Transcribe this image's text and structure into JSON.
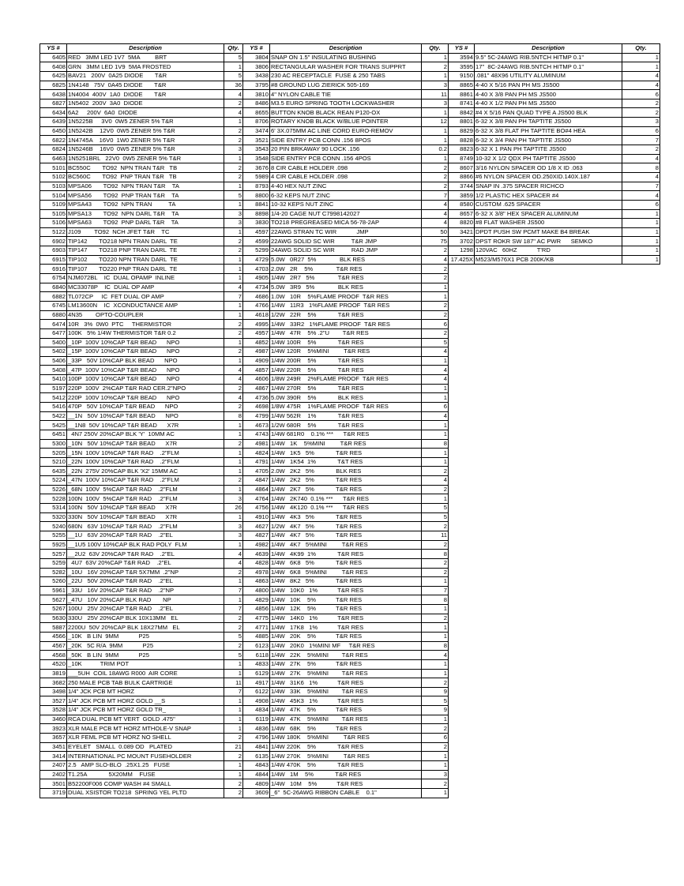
{
  "headers": {
    "ys": "YS #",
    "description": "Description",
    "qty": "Qty."
  },
  "groups": [
    {
      "rows": [
        [
          "6405",
          "RED   3MM LED 1V7  5MA         BRT",
          "5"
        ],
        [
          "6408",
          "GRN   3MM LED 1V9  5MA FROSTED",
          "1"
        ],
        [
          "6425",
          "BAV21   200V  0A25 DIODE       T&R",
          "5"
        ],
        [
          "6825",
          "1N4148   75V  0A45 DIODE       T&R",
          "36"
        ],
        [
          "6438",
          "1N4004  400V  1A0  DIODE       T&R",
          "4"
        ],
        [
          "6827",
          "1N5402  200V  3A0  DIODE",
          "2"
        ],
        [
          "6434",
          "6A2     200V  6A0  DIODE",
          "4"
        ],
        [
          "6439",
          "1N5225B     3V0  0W5 ZENER 5% T&R",
          "1"
        ],
        [
          "6450",
          "1N5242B    12V0  0W5 ZENER 5% T&R",
          "2"
        ],
        [
          "6822",
          "1N4745A    16V0  1W0 ZENER 5% T&R",
          "2"
        ],
        [
          "6824",
          "1N5246B    16V0  0W5 ZENER 5% T&R",
          "3"
        ],
        [
          "6463",
          "1N5251BRL   22V0  0W5 ZENER 5% T&R",
          "1"
        ],
        [
          "5101",
          "BC550C       TO92  NPN TRAN T&R   TB",
          "2"
        ],
        [
          "5102",
          "BC560C       TO92  PNP TRAN T&R   TB",
          "2"
        ],
        [
          "5103",
          "MPSA06       TO92  NPN TRAN T&R    TA",
          "1"
        ],
        [
          "5104",
          "MPSA56       TO92  PNP TRAN T&R    TA",
          "5"
        ],
        [
          "5109",
          "MPSA43       TO92  NPN TRAN          TA",
          "1"
        ],
        [
          "5105",
          "MPSA13       TO92  NPN DARL T&R    TA",
          "3"
        ],
        [
          "5106",
          "MPSA63       TO92  PNP DARL T&R    TA",
          "3"
        ],
        [
          "5122",
          "J109        TO92  NCH JFET T&R    TC",
          "1"
        ],
        [
          "6902",
          "TIP142       TO218 NPN TRAN DARL  TE",
          "2"
        ],
        [
          "6903",
          "TIP147       TO218 PNP TRAN DARL  TE",
          "2"
        ],
        [
          "6915",
          "TIP102       TO220 NPN TRAN DARL  TE",
          "1"
        ],
        [
          "6916",
          "TIP107       TO220 PNP TRAN DARL  TE",
          "1"
        ],
        [
          "6754",
          "NJM072BL    IC  DUAL OPAMP  INLINE",
          "1"
        ],
        [
          "6840",
          "MC33078P    IC  DUAL OP AMP",
          "4"
        ],
        [
          "6882",
          "TL072CP     IC  FET DUAL OP AMP",
          "7"
        ],
        [
          "6745",
          "LM13600N    IC  XCONDUCTANCE AMP",
          "1"
        ],
        [
          "6880",
          "4N35        OPTO-COUPLER",
          "1"
        ],
        [
          "6474",
          "10R   3%  0W0  PTC     THERMISTOR",
          "2"
        ],
        [
          "6477",
          "100K   5% 1/4W THERMISTOR T&R 0.2",
          "2"
        ],
        [
          "5400",
          "_10P  100V 10%CAP T&R BEAD      NPO",
          "1"
        ],
        [
          "5402",
          "_15P  100V 10%CAP T&R BEAD      NPO",
          "2"
        ],
        [
          "5406",
          "_33P   50V 10%CAP BLK BEAD      NPO",
          "1"
        ],
        [
          "5408",
          "_47P  100V 10%CAP T&R BEAD      NPO",
          "4"
        ],
        [
          "5410",
          "100P  100V 10%CAP T&R BEAD      NPO",
          "4"
        ],
        [
          "5197",
          "220P  100V  2%CAP T&R RAD CER.2\"NPO",
          "2"
        ],
        [
          "5412",
          "220P  100V 10%CAP T&R BEAD      NPO",
          "4"
        ],
        [
          "5416",
          "470P   50V 10%CAP T&R BEAD      NPO",
          "2"
        ],
        [
          "5422",
          "__1N   50V 10%CAP T&R BEAD      NPO",
          "8"
        ],
        [
          "5425",
          "__1N8  50V 10%CAP T&R BEAD      X7R",
          "1"
        ],
        [
          "6451",
          "  4N7 250V 20%CAP BLK 'Y'  10MM AC",
          "1"
        ],
        [
          "5300",
          "_10N   50V 10%CAP T&R BEAD      X7R",
          "2"
        ],
        [
          "5205",
          "_15N  100V 10%CAP T&R RAD    .2\"FLM",
          "1"
        ],
        [
          "5210",
          "_22N  100V 10%CAP T&R RAD    .2\"FLM",
          "1"
        ],
        [
          "6435",
          "_22N  275V 20%CAP BLK 'X2' 15MM AC",
          "1"
        ],
        [
          "5224",
          "_47N  100V 10%CAP T&R RAD    .2\"FLM",
          "2"
        ],
        [
          "5226",
          "_68N  100V  5%CAP T&R RAD    .2\"FLM",
          "1"
        ],
        [
          "5228",
          "100N  100V  5%CAP T&R RAD    .2\"FLM",
          "3"
        ],
        [
          "5314",
          "100N   50V 10%CAP T&R BEAD      X7R",
          "26"
        ],
        [
          "5320",
          "330N   50V 10%CAP T&R BEAD      X7R",
          "1"
        ],
        [
          "5240",
          "680N   63V 10%CAP T&R RAD    .2\"FLM",
          "3"
        ],
        [
          "5255",
          "__1U   63V 20%CAP T&R RAD    .2\"EL",
          "3"
        ],
        [
          "5925",
          "__1U5 100V 10%CAP BLK RAD POLY  FLM",
          "1"
        ],
        [
          "5257",
          "__2U2  63V 20%CAP T&R RAD    .2\"EL",
          "4"
        ],
        [
          "5259",
          "  4U7  63V 20%CAP T&R RAD    .2\"EL",
          "4"
        ],
        [
          "5282",
          "_10U   16V 20%CAP T&R 5X7MM  .2\"NP",
          "2"
        ],
        [
          "5260",
          "_22U   50V 20%CAP T&R RAD    .2\"EL",
          "1"
        ],
        [
          "5961",
          "_33U   16V 20%CAP T&R RAD    .2\"NP",
          "7"
        ],
        [
          "5627",
          "_47U   10V 20%CAP BLK RAD       NP",
          "1"
        ],
        [
          "5267",
          "100U   25V 20%CAP T&R RAD    .2\"EL",
          "7"
        ],
        [
          "5630",
          "330U   25V 20%CAP BLK 10X13MM   EL",
          "2"
        ],
        [
          "5887",
          "2200U  50V 20%CAP BLK 18X27MM   EL",
          "2"
        ],
        [
          "4566",
          "_10K   B LIN  9MM            P25",
          "5"
        ],
        [
          "4567",
          "_20K   5C R/A  9MM            P25",
          "2"
        ],
        [
          "4568",
          "_50K   B LIN  9MM            P25",
          "5"
        ],
        [
          "4520",
          "_10K           TRIM POT",
          "1"
        ],
        [
          "3819",
          "___5UH  COIL 18AWG R000  AIR CORE",
          "1"
        ],
        [
          "3682",
          "250 MALE PCB TAB BULK CARTRIGE",
          "11"
        ],
        [
          "3498",
          "1/4\" JCK PCB MT HORZ",
          "7"
        ],
        [
          "3527",
          "1/4\" JCK PCB MT HORZ GOLD __S",
          "1"
        ],
        [
          "3528",
          "1/4\" JCK PCB MT HORZ GOLD TR_",
          "1"
        ],
        [
          "3460",
          "RCA DUAL PCB MT VERT  GOLD .475\"",
          "1"
        ],
        [
          "3923",
          "XLR MALE PCB MT HORZ MTHOLE-V SNAP",
          "1"
        ],
        [
          "3657",
          "XLR FEML PCB MT HORZ NO SHELL",
          "2"
        ],
        [
          "3451",
          "EYELET   SMALL  0.089 OD   PLATED",
          "21"
        ],
        [
          "3414",
          "INTERNATIONAL PC MOUNT FUSEHOLDER",
          "2"
        ],
        [
          "2407",
          "2.5   AMP SLO-BLO  .25X1.25   FUSE",
          "1"
        ],
        [
          "2402",
          "T1.25A             5X20MM    FUSE",
          "1"
        ],
        [
          "3501",
          "B52200F006 COMP WASH #4 SMALL",
          "2"
        ],
        [
          "3719",
          "DUAL XSISTOR TO218  SPRING YEL PLTD",
          "2"
        ]
      ]
    },
    {
      "rows": [
        [
          "3804",
          "SNAP ON 1.5\" INSULATING BUSHING",
          "1"
        ],
        [
          "3806",
          "RECTANGULAR WASHER FOR TRANS SUPPRT",
          "2"
        ],
        [
          "3438",
          "230 AC RECEPTACLE  FUSE & 250 TABS",
          "1"
        ],
        [
          "3795",
          "#8 GROUND LUG ZIERICK 505-169",
          "3"
        ],
        [
          "3810",
          "4\" NYLON CABLE TIE",
          "11"
        ],
        [
          "8486",
          "M3.5 EURO SPRING TOOTH LOCKWASHER",
          "3"
        ],
        [
          "8655",
          "BUTTON KNOB BLACK REAN P120-OX",
          "1"
        ],
        [
          "8706",
          "ROTARY KNOB BLACK W/BLUE POINTER",
          "12"
        ],
        [
          "3474",
          "6' 3X.075MM AC LINE CORD EURO-REMOV",
          "1"
        ],
        [
          "3521",
          "SIDE ENTRY PCB CONN .156 8POS",
          "1"
        ],
        [
          "3543",
          "20 PIN BRKAWAY 90 LOCK .156",
          "0.2"
        ],
        [
          "3548",
          "SIDE ENTRY PCB CONN .156 4POS",
          "1"
        ],
        [
          "3676",
          "8 CIR CABLE HOLDER .098",
          "2"
        ],
        [
          "5989",
          "4 CIR CABLE HOLDER .098",
          "2"
        ],
        [
          "8793",
          "4-40 HEX NUT ZINC",
          "2"
        ],
        [
          "8800",
          "6-32 KEPS NUT ZINC",
          "7"
        ],
        [
          "8841",
          "10-32 KEPS NUT ZINC",
          "4"
        ],
        [
          "8898",
          "1/4-20 CAGE NUT C7998142027",
          "4"
        ],
        [
          "3830",
          "TO218 PREGREASED MICA 56-78-2AP",
          "4"
        ],
        [
          "4597",
          "22AWG STRAN TC WIR            JMP",
          "50"
        ],
        [
          "4599",
          "22AWG SOLID SC WIR          T&R JMP",
          "75"
        ],
        [
          "5299",
          "24AWG SOLID SC WIR          RAD JMP",
          "2"
        ],
        [
          "4729",
          "5.0W   0R27  5%              BLK RES",
          "4"
        ],
        [
          "4703",
          "2.0W   2R    5%              T&R RES",
          "2"
        ],
        [
          "4905",
          "1/4W   2R7   5%              T&R RES",
          "2"
        ],
        [
          "4734",
          "5.0W   3R9   5%              BLK RES",
          "1"
        ],
        [
          "4686",
          "1.0W   10R    5%FLAME PROOF  T&R RES",
          "1"
        ],
        [
          "4766",
          "1/4W   11R3   1%FLAME PROOF  T&R RES",
          "2"
        ],
        [
          "4618",
          "1/2W   22R    5%             T&R RES",
          "2"
        ],
        [
          "4995",
          "1/4W   33R2   1%FLAME PROOF  T&R RES",
          "6"
        ],
        [
          "4957",
          "1/4W   47R    5% .2\"U        T&R RES",
          "2"
        ],
        [
          "4852",
          "1/4W 100R    5%             T&R RES",
          "5"
        ],
        [
          "4987",
          "1/4W 120R    5%MINI         T&R RES",
          "4"
        ],
        [
          "4909",
          "1/4W 200R    5%             T&R RES",
          "1"
        ],
        [
          "4857",
          "1/4W 220R    5%             T&R RES",
          "4"
        ],
        [
          "4606",
          "1/8W 249R    2%FLAME PROOF  T&R RES",
          "4"
        ],
        [
          "4867",
          "1/4W 270R    5%             T&R RES",
          "1"
        ],
        [
          "4736",
          "5.0W 390R    5%             BLK RES",
          "1"
        ],
        [
          "4698",
          "1/8W 475R    1%FLAME PROOF  T&R RES",
          "6"
        ],
        [
          "4799",
          "1/4W 562R    1%             T&R RES",
          "4"
        ],
        [
          "4673",
          "1/2W 680R    5%             T&R RES",
          "1"
        ],
        [
          "4743",
          "1/4W 681R0    0.1% ***      T&R RES",
          "1"
        ],
        [
          "4981",
          "1/4W   1K    5%MINI         T&R RES",
          "8"
        ],
        [
          "4824",
          "1/4W   1K5   5%             T&R RES",
          "1"
        ],
        [
          "4791",
          "1/4W   1K54  1%             T&T RES",
          "1"
        ],
        [
          "4705",
          "2.0W   2K2   5%             BLK RES",
          "2"
        ],
        [
          "4847",
          "1/4W   2K2   5%             T&R RES",
          "4"
        ],
        [
          "4864",
          "1/4W   2K7   5%             T&R RES",
          "2"
        ],
        [
          "4764",
          "1/4W   2K740  0.1% ***      T&R RES",
          "1"
        ],
        [
          "4756",
          "1/4W   4K120  0.1% ***      T&R RES",
          "5"
        ],
        [
          "4910",
          "1/4W   4K3   5%             T&R RES",
          "5"
        ],
        [
          "4627",
          "1/2W   4K7   5%             T&R RES",
          "2"
        ],
        [
          "4827",
          "1/4W   4K7   5%             T&R RES",
          "11"
        ],
        [
          "4982",
          "1/4W   4K7   5%MINI         T&R RES",
          "2"
        ],
        [
          "4639",
          "1/4W   4K99  1%             T&R RES",
          "8"
        ],
        [
          "4828",
          "1/4W   6K8   5%             T&R RES",
          "2"
        ],
        [
          "4978",
          "1/4W   6K8   5%MINI         T&R RES",
          "2"
        ],
        [
          "4863",
          "1/4W   8K2   5%             T&R RES",
          "1"
        ],
        [
          "4800",
          "1/4W   10K0   1%            T&R RES",
          "7"
        ],
        [
          "4829",
          "1/4W   10K    5%            T&R RES",
          "8"
        ],
        [
          "4856",
          "1/4W   12K    5%            T&R RES",
          "1"
        ],
        [
          "4775",
          "1/4W   14K0   1%            T&R RES",
          "2"
        ],
        [
          "4771",
          "1/4W   17K8   1%            T&R RES",
          "1"
        ],
        [
          "4885",
          "1/4W   20K    5%            T&R RES",
          "1"
        ],
        [
          "6123",
          "1/4W   20K0   1%MINI MF     T&R RES",
          "8"
        ],
        [
          "6118",
          "1/4W   22K    5%MINI        T&R RES",
          "4"
        ],
        [
          "4833",
          "1/4W   27K    5%            T&R RES",
          "1"
        ],
        [
          "6129",
          "1/4W   27K    5%MINI        T&R RES",
          "1"
        ],
        [
          "4917",
          "1/4W   31K6   1%            T&R RES",
          "2"
        ],
        [
          "6122",
          "1/4W   33K    5%MINI        T&R RES",
          "9"
        ],
        [
          "4908",
          "1/4W   45K3   1%            T&R RES",
          "5"
        ],
        [
          "4834",
          "1/4W   47K    5%            T&R RES",
          "9"
        ],
        [
          "6119",
          "1/4W   47K    5%MINI        T&R RES",
          "1"
        ],
        [
          "4836",
          "1/4W   68K    5%            T&R RES",
          "2"
        ],
        [
          "4796",
          "1/4W 180K    5%MINI         T&R RES",
          "6"
        ],
        [
          "4841",
          "1/4W 220K    5%             T&R RES",
          "2"
        ],
        [
          "6135",
          "1/4W 270K    5%MINI         T&R RES",
          "1"
        ],
        [
          "4843",
          "1/4W 470K    5%             T&R RES",
          "1"
        ],
        [
          "4844",
          "1/4W   1M    5%             T&R RES",
          "3"
        ],
        [
          "4809",
          "1/4W   10M    5%            T&R RES",
          "2"
        ],
        [
          "3609",
          "_6\"  5C-26AWG RIBBON CABLE    0.1\"",
          "1"
        ]
      ]
    },
    {
      "rows": [
        [
          "3594",
          "9.5\" 5C-24AWG RIB.5NTCH HITMP 0.1\"",
          "1"
        ],
        [
          "3595",
          "17\"  8C-24AWG RIB.5NTCH HITMP 0.1\"",
          "1"
        ],
        [
          "9150",
          ".081\" 48X96 UTILITY ALUMINUM",
          "4"
        ],
        [
          "8865",
          "4-40 X 5/16 PAN PH MS JS500",
          "4"
        ],
        [
          "8861",
          "4-40 X 3/8 PAN PH MS JS500",
          "6"
        ],
        [
          "8741",
          "4-40 X 1/2 PAN PH MS JS500",
          "2"
        ],
        [
          "8842",
          "#4 X 5/16 PAN QUAD TYPE A JS500 BLK",
          "2"
        ],
        [
          "8801",
          "6-32 X 3/8 PAN PH TAPTITE JS500",
          "3"
        ],
        [
          "8829",
          "6-32 X 3/8 FLAT PH TAPTITE BO#4 HEA",
          "6"
        ],
        [
          "8828",
          "6-32 X 3/4 PAN PH TAPTITE JS500",
          "7"
        ],
        [
          "8823",
          "6-32 X 1 PAN PH TAPTITE JS500",
          "2"
        ],
        [
          "8749",
          "10-32 X 1/2 QDX PH TAPTITE JS500",
          "4"
        ],
        [
          "8607",
          "3/16 NYLON SPACER OD 1/8 X ID .063",
          "8"
        ],
        [
          "8866",
          "#6 NYLON SPACER OD.250XID.140X.187",
          "4"
        ],
        [
          "3744",
          "SNAP IN .375 SPACER RICHCO",
          "7"
        ],
        [
          "3859",
          "1/2 PLASTIC HEX SPACER #4",
          "4"
        ],
        [
          "8580",
          "CUSTOM .625 SPACER",
          "6"
        ],
        [
          "8657",
          "6-32 X 3/8\" HEX SPACER ALUMINUM",
          "1"
        ],
        [
          "8820",
          "#8 FLAT WASHER JS500",
          "1"
        ],
        [
          "3421",
          "DPDT PUSH SW PCMT MAKE B4 BREAK",
          "1"
        ],
        [
          "3702",
          "DPST ROKR SW 187\" AC PWR      SEMKO",
          "1"
        ],
        [
          "1298",
          "120VAC   60HZ            T'RD",
          "1"
        ],
        [
          "17.425X",
          "M523/M576X1 PCB 200K/KB",
          "1"
        ]
      ]
    }
  ]
}
